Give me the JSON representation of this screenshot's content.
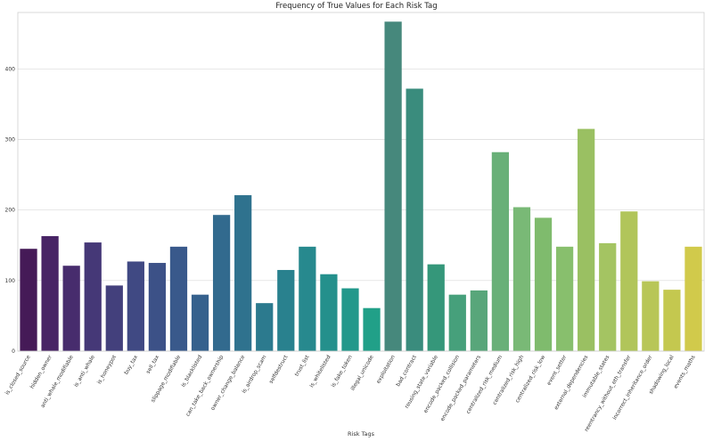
{
  "chart_data": {
    "type": "bar",
    "title": "Frequency of True Values for Each Risk Tag",
    "xlabel": "Risk Tags",
    "ylabel": "",
    "ylim": [
      0,
      480
    ],
    "yticks": [
      0,
      100,
      200,
      300,
      400
    ],
    "grid": true,
    "categories": [
      "is_closed_source",
      "hidden_owner",
      "anti_whale_modifiable",
      "is_anti_whale",
      "is_honeypot",
      "buy_tax",
      "sell_tax",
      "slippage_modifiable",
      "is_blacklisted",
      "can_take_back_ownership",
      "owner_change_balance",
      "is_airdrop_scam",
      "selfdestruct",
      "trust_list",
      "is_whitelisted",
      "is_fake_token",
      "illegal_unicode",
      "exploitation",
      "bad_contract",
      "reusing_state_variable",
      "encode_packed_collision",
      "encode_packed_parameters",
      "centralized_risk_medium",
      "centralized_risk_high",
      "centralized_risk_low",
      "event_setter",
      "external_dependencies",
      "immutable_states",
      "reentrancy_without_eth_transfer",
      "incorrect_inheritance_order",
      "shadowing_local",
      "events_maths"
    ],
    "values": [
      145,
      163,
      121,
      154,
      93,
      127,
      125,
      148,
      80,
      193,
      221,
      68,
      115,
      148,
      109,
      89,
      61,
      467,
      372,
      123,
      80,
      86,
      282,
      204,
      189,
      148,
      315,
      153,
      198,
      99,
      87,
      148
    ],
    "colors": [
      "#451a57",
      "#482465",
      "#472c6d",
      "#453877",
      "#43407c",
      "#404983",
      "#3c5187",
      "#39598b",
      "#36618d",
      "#326a8e",
      "#2f728e",
      "#2c7a8e",
      "#29818e",
      "#27898e",
      "#24908c",
      "#22988b",
      "#21a088",
      "#46887c",
      "#3a8c7d",
      "#35977a",
      "#46a07b",
      "#58a67a",
      "#69b078",
      "#79b976",
      "#7fbb6d",
      "#88bf6d",
      "#9ac062",
      "#a4c462",
      "#b1c55a",
      "#b8c657",
      "#c4c84f",
      "#d1ca4b"
    ]
  }
}
